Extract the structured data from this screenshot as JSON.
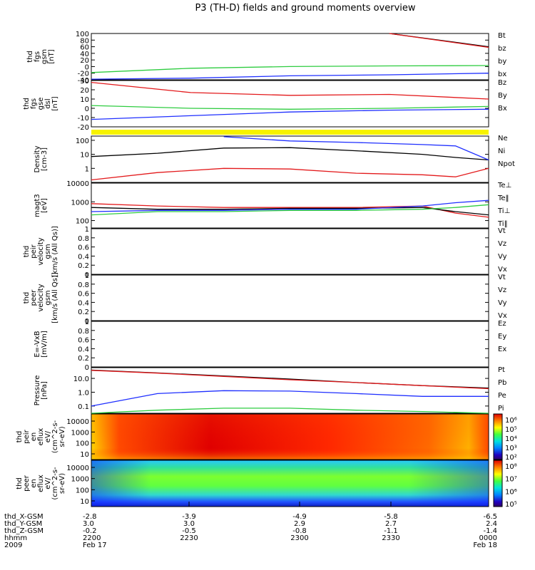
{
  "title": "P3 (TH-D) fields and ground moments overview",
  "colors": {
    "red": "#e31a1c",
    "green": "#2ecc40",
    "blue": "#1f2fff",
    "yellow": "#f7f300",
    "black": "#000000"
  },
  "chart_data": [
    {
      "type": "line",
      "panel": "fgs-gsm",
      "ylabel": [
        "thd",
        "fgs",
        "gsm",
        "[nT]"
      ],
      "ylim": [
        -40,
        100
      ],
      "yticks": [
        100,
        80,
        60,
        40,
        20,
        0,
        -20,
        -40
      ],
      "legend": [
        "Bt",
        "bz",
        "by",
        "bx"
      ],
      "legend_colors": [
        "black",
        "red",
        "green",
        "blue"
      ],
      "x": [
        0,
        30,
        60,
        90,
        120
      ],
      "series": [
        {
          "name": "Bt",
          "color": "black",
          "values": [
            null,
            null,
            null,
            100,
            60
          ]
        },
        {
          "name": "bz",
          "color": "red",
          "values": [
            null,
            null,
            null,
            100,
            58
          ]
        },
        {
          "name": "by",
          "color": "green",
          "values": [
            -18,
            -5,
            0,
            2,
            3
          ]
        },
        {
          "name": "bx",
          "color": "blue",
          "values": [
            -38,
            -35,
            -28,
            -25,
            -20
          ]
        }
      ]
    },
    {
      "type": "line",
      "panel": "fgs-gse",
      "ylabel": [
        "thd",
        "fgs",
        "gse",
        "dsl",
        "[nT]"
      ],
      "ylim": [
        -20,
        30
      ],
      "yticks": [
        30,
        20,
        10,
        0,
        -10,
        -20
      ],
      "legend": [
        "Bz",
        "By",
        "Bx"
      ],
      "legend_colors": [
        "red",
        "green",
        "blue"
      ],
      "x": [
        0,
        30,
        60,
        90,
        120
      ],
      "series": [
        {
          "name": "Bz",
          "color": "red",
          "values": [
            28,
            17,
            14,
            15,
            10
          ]
        },
        {
          "name": "By",
          "color": "green",
          "values": [
            3,
            0,
            -1,
            0,
            2
          ]
        },
        {
          "name": "Bx",
          "color": "blue",
          "values": [
            -12,
            -8,
            -4,
            -2,
            -1
          ]
        }
      ]
    },
    {
      "type": "line",
      "panel": "density",
      "ylabel": [
        "Density",
        "[cm-3]"
      ],
      "yscale": "log",
      "ylim": [
        0.1,
        200
      ],
      "ytick_labels": [
        "100",
        "10",
        "1"
      ],
      "legend": [
        "Ne",
        "Ni",
        "Npot"
      ],
      "legend_colors": [
        "red",
        "black",
        "blue"
      ],
      "x": [
        0,
        20,
        40,
        60,
        80,
        100,
        110,
        120
      ],
      "series": [
        {
          "name": "Ne",
          "color": "red",
          "values": [
            0.15,
            0.5,
            1.0,
            0.9,
            0.45,
            0.35,
            0.25,
            1.0
          ]
        },
        {
          "name": "Ni",
          "color": "black",
          "values": [
            7,
            12,
            28,
            30,
            18,
            10,
            6,
            4
          ]
        },
        {
          "name": "Npot",
          "color": "blue",
          "values": [
            null,
            null,
            180,
            90,
            70,
            50,
            40,
            4
          ]
        }
      ]
    },
    {
      "type": "line",
      "panel": "temperature",
      "ylabel": [
        "magt3",
        "[eV]"
      ],
      "yscale": "log",
      "ylim": [
        40,
        10000
      ],
      "ytick_labels": [
        "10000",
        "1000",
        "100"
      ],
      "legend": [
        "Te⊥",
        "Te‖",
        "Ti⊥",
        "Ti‖"
      ],
      "legend_colors": [
        "red",
        "black",
        "blue",
        "green"
      ],
      "x": [
        0,
        20,
        40,
        60,
        80,
        100,
        110,
        120
      ],
      "series": [
        {
          "name": "Te⊥",
          "color": "red",
          "values": [
            800,
            600,
            500,
            500,
            500,
            600,
            250,
            150
          ]
        },
        {
          "name": "Te‖",
          "color": "black",
          "values": [
            500,
            400,
            400,
            450,
            450,
            500,
            300,
            200
          ]
        },
        {
          "name": "Ti⊥",
          "color": "blue",
          "values": [
            300,
            350,
            350,
            400,
            400,
            600,
            900,
            1200
          ]
        },
        {
          "name": "Ti‖",
          "color": "green",
          "values": [
            200,
            300,
            300,
            350,
            350,
            400,
            500,
            700
          ]
        }
      ]
    },
    {
      "type": "line",
      "panel": "peir-velocity",
      "ylabel": [
        "thd",
        "peir",
        "velocity",
        "gsm",
        "[km/s (All Qs)]"
      ],
      "ylim": [
        0,
        1
      ],
      "yticks": [
        1.0,
        0.8,
        0.6,
        0.4,
        0.2,
        0.0
      ],
      "legend": [
        "Vt",
        "Vz",
        "Vy",
        "Vx"
      ],
      "legend_colors": [
        "black",
        "red",
        "green",
        "blue"
      ],
      "series": []
    },
    {
      "type": "line",
      "panel": "peer-velocity",
      "ylabel": [
        "thd",
        "peer",
        "velocity",
        "gsm",
        "[km/s (All Qs)]"
      ],
      "ylim": [
        0,
        1
      ],
      "yticks": [
        1.0,
        0.8,
        0.6,
        0.4,
        0.2,
        0.0
      ],
      "legend": [
        "Vt",
        "Vz",
        "Vy",
        "Vx"
      ],
      "legend_colors": [
        "black",
        "red",
        "green",
        "blue"
      ],
      "series": []
    },
    {
      "type": "line",
      "panel": "efield",
      "ylabel": [
        "E=-VxB",
        "[mV/m]"
      ],
      "ylim": [
        0,
        1
      ],
      "yticks": [
        1.0,
        0.8,
        0.6,
        0.4,
        0.2,
        0.0
      ],
      "legend": [
        "Ez",
        "Ey",
        "Ex"
      ],
      "legend_colors": [
        "red",
        "green",
        "blue"
      ],
      "series": []
    },
    {
      "type": "line",
      "panel": "pressure",
      "ylabel": [
        "Pressure",
        "[nPa]"
      ],
      "yscale": "log",
      "ylim": [
        0.03,
        60
      ],
      "ytick_labels": [
        "10.0",
        "1.0",
        "0.1"
      ],
      "legend": [
        "Pt",
        "Pb",
        "Pe",
        "Pi"
      ],
      "legend_colors": [
        "black",
        "red",
        "green",
        "blue"
      ],
      "x": [
        0,
        20,
        40,
        60,
        80,
        100,
        120
      ],
      "series": [
        {
          "name": "Pt",
          "color": "black",
          "values": [
            40,
            25,
            15,
            9,
            5,
            3,
            2
          ]
        },
        {
          "name": "Pb",
          "color": "red",
          "values": [
            38,
            24,
            14,
            8,
            5,
            3,
            1.8
          ]
        },
        {
          "name": "Pe",
          "color": "green",
          "values": [
            0.03,
            0.05,
            0.07,
            0.07,
            0.05,
            0.04,
            0.03
          ]
        },
        {
          "name": "Pi",
          "color": "blue",
          "values": [
            0.1,
            0.8,
            1.3,
            1.2,
            0.8,
            0.5,
            0.5
          ]
        }
      ]
    },
    {
      "type": "heatmap",
      "panel": "peir-eflux",
      "ylabel": [
        "thd",
        "peir",
        "en",
        "eflux",
        "eV/",
        "(cm^2-s-",
        "sr-eV)"
      ],
      "ytick_labels": [
        "10000",
        "1000",
        "100",
        "10"
      ],
      "colorbar_labels": [
        "10⁶",
        "10⁵",
        "10⁴",
        "10³",
        "10²"
      ]
    },
    {
      "type": "heatmap",
      "panel": "peer-eflux",
      "ylabel": [
        "thd",
        "peer",
        "en",
        "eflux",
        "eV/",
        "(cm^2-s-",
        "sr-eV)"
      ],
      "ytick_labels": [
        "10000",
        "1000",
        "100",
        "10"
      ],
      "colorbar_labels": [
        "10⁸",
        "10⁷",
        "10⁶",
        "10⁵"
      ]
    }
  ],
  "bottom_axis": {
    "row_labels": [
      "thd_X-GSM",
      "thd_Y-GSM",
      "thd_Z-GSM",
      "hhmm",
      "2009"
    ],
    "columns": [
      [
        "-2.8",
        "3.0",
        "-0.2",
        "2200",
        "Feb 17"
      ],
      [
        "-3.9",
        "3.0",
        "-0.5",
        "2230",
        ""
      ],
      [
        "-4.9",
        "2.9",
        "-0.8",
        "2300",
        ""
      ],
      [
        "-5.8",
        "2.7",
        "-1.1",
        "2330",
        ""
      ],
      [
        "-6.5",
        "2.4",
        "-1.4",
        "0000",
        "Feb 18"
      ]
    ]
  }
}
